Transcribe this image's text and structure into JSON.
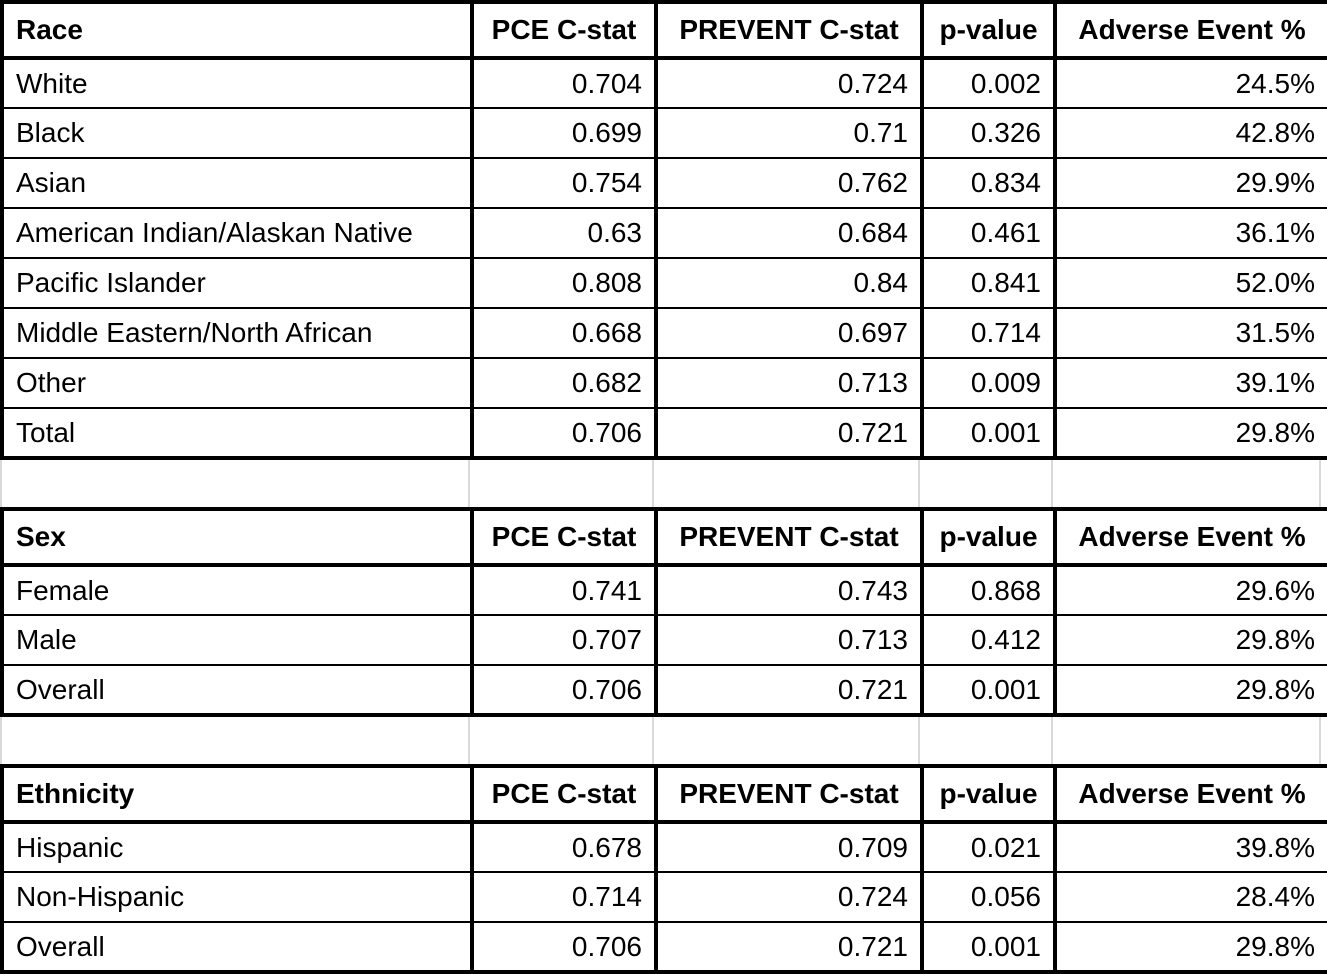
{
  "page": {
    "background_color": "#ffffff",
    "border_color": "#000000",
    "gap_gridline_color": "#d9d9d9",
    "text_color": "#000000"
  },
  "tables": [
    {
      "label": "Race",
      "columns": [
        "PCE C-stat",
        "PREVENT C-stat",
        "p-value",
        "Adverse Event %"
      ],
      "rows": [
        {
          "group": "White",
          "pce": "0.704",
          "prevent": "0.724",
          "p": "0.002",
          "adverse": "24.5%"
        },
        {
          "group": "Black",
          "pce": "0.699",
          "prevent": "0.71",
          "p": "0.326",
          "adverse": "42.8%"
        },
        {
          "group": "Asian",
          "pce": "0.754",
          "prevent": "0.762",
          "p": "0.834",
          "adverse": "29.9%"
        },
        {
          "group": "American Indian/Alaskan Native",
          "pce": "0.63",
          "prevent": "0.684",
          "p": "0.461",
          "adverse": "36.1%"
        },
        {
          "group": "Pacific Islander",
          "pce": "0.808",
          "prevent": "0.84",
          "p": "0.841",
          "adverse": "52.0%"
        },
        {
          "group": "Middle Eastern/North African",
          "pce": "0.668",
          "prevent": "0.697",
          "p": "0.714",
          "adverse": "31.5%"
        },
        {
          "group": "Other",
          "pce": "0.682",
          "prevent": "0.713",
          "p": "0.009",
          "adverse": "39.1%"
        },
        {
          "group": "Total",
          "pce": "0.706",
          "prevent": "0.721",
          "p": "0.001",
          "adverse": "29.8%"
        }
      ]
    },
    {
      "label": "Sex",
      "columns": [
        "PCE C-stat",
        "PREVENT C-stat",
        "p-value",
        "Adverse Event %"
      ],
      "rows": [
        {
          "group": "Female",
          "pce": "0.741",
          "prevent": "0.743",
          "p": "0.868",
          "adverse": "29.6%"
        },
        {
          "group": "Male",
          "pce": "0.707",
          "prevent": "0.713",
          "p": "0.412",
          "adverse": "29.8%"
        },
        {
          "group": "Overall",
          "pce": "0.706",
          "prevent": "0.721",
          "p": "0.001",
          "adverse": "29.8%"
        }
      ]
    },
    {
      "label": "Ethnicity",
      "columns": [
        "PCE C-stat",
        "PREVENT C-stat",
        "p-value",
        "Adverse Event %"
      ],
      "rows": [
        {
          "group": "Hispanic",
          "pce": "0.678",
          "prevent": "0.709",
          "p": "0.021",
          "adverse": "39.8%"
        },
        {
          "group": "Non-Hispanic",
          "pce": "0.714",
          "prevent": "0.724",
          "p": "0.056",
          "adverse": "28.4%"
        },
        {
          "group": "Overall",
          "pce": "0.706",
          "prevent": "0.721",
          "p": "0.001",
          "adverse": "29.8%"
        }
      ]
    }
  ]
}
